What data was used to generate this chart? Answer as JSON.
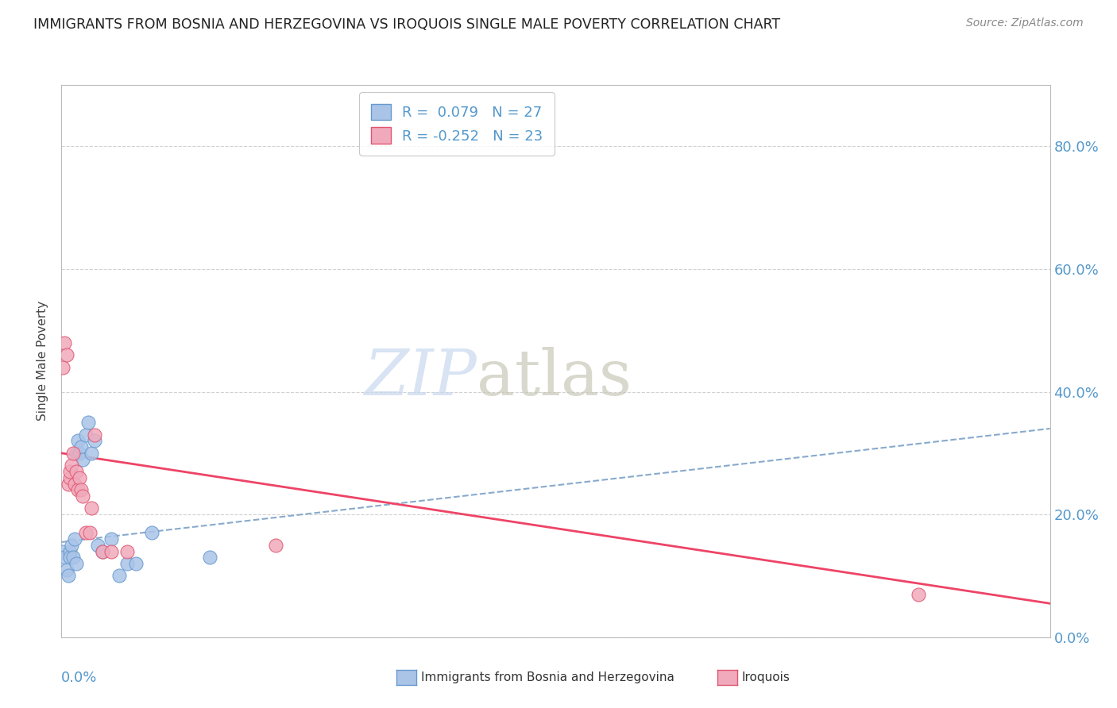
{
  "title": "IMMIGRANTS FROM BOSNIA AND HERZEGOVINA VS IROQUOIS SINGLE MALE POVERTY CORRELATION CHART",
  "source": "Source: ZipAtlas.com",
  "ylabel": "Single Male Poverty",
  "xmin": 0.0,
  "xmax": 0.6,
  "ymin": 0.0,
  "ymax": 0.9,
  "legend_r1": "R =  0.079   N = 27",
  "legend_r2": "R = -0.252   N = 23",
  "blue_color": "#aac4e8",
  "pink_color": "#f0aabb",
  "blue_edge_color": "#6699cc",
  "pink_edge_color": "#e05570",
  "blue_line_color": "#88aacc",
  "pink_line_color": "#ee4466",
  "blue_scatter": [
    [
      0.001,
      0.14
    ],
    [
      0.002,
      0.13
    ],
    [
      0.003,
      0.11
    ],
    [
      0.004,
      0.1
    ],
    [
      0.005,
      0.14
    ],
    [
      0.005,
      0.13
    ],
    [
      0.006,
      0.15
    ],
    [
      0.007,
      0.13
    ],
    [
      0.008,
      0.16
    ],
    [
      0.009,
      0.12
    ],
    [
      0.009,
      0.3
    ],
    [
      0.01,
      0.32
    ],
    [
      0.011,
      0.3
    ],
    [
      0.012,
      0.31
    ],
    [
      0.013,
      0.29
    ],
    [
      0.015,
      0.33
    ],
    [
      0.016,
      0.35
    ],
    [
      0.018,
      0.3
    ],
    [
      0.02,
      0.32
    ],
    [
      0.022,
      0.15
    ],
    [
      0.025,
      0.14
    ],
    [
      0.03,
      0.16
    ],
    [
      0.035,
      0.1
    ],
    [
      0.04,
      0.12
    ],
    [
      0.045,
      0.12
    ],
    [
      0.055,
      0.17
    ],
    [
      0.09,
      0.13
    ]
  ],
  "pink_scatter": [
    [
      0.001,
      0.44
    ],
    [
      0.002,
      0.48
    ],
    [
      0.003,
      0.46
    ],
    [
      0.004,
      0.25
    ],
    [
      0.005,
      0.26
    ],
    [
      0.005,
      0.27
    ],
    [
      0.006,
      0.28
    ],
    [
      0.007,
      0.3
    ],
    [
      0.008,
      0.25
    ],
    [
      0.009,
      0.27
    ],
    [
      0.01,
      0.24
    ],
    [
      0.011,
      0.26
    ],
    [
      0.012,
      0.24
    ],
    [
      0.013,
      0.23
    ],
    [
      0.015,
      0.17
    ],
    [
      0.017,
      0.17
    ],
    [
      0.018,
      0.21
    ],
    [
      0.02,
      0.33
    ],
    [
      0.025,
      0.14
    ],
    [
      0.03,
      0.14
    ],
    [
      0.04,
      0.14
    ],
    [
      0.13,
      0.15
    ],
    [
      0.52,
      0.07
    ]
  ],
  "blue_trendline": [
    [
      0.0,
      0.155
    ],
    [
      0.6,
      0.34
    ]
  ],
  "pink_trendline": [
    [
      0.0,
      0.3
    ],
    [
      0.6,
      0.055
    ]
  ],
  "ytick_values": [
    0.0,
    0.2,
    0.4,
    0.6,
    0.8
  ],
  "ytick_labels": [
    "0.0%",
    "20.0%",
    "40.0%",
    "60.0%",
    "80.0%"
  ],
  "xtick_positions": [
    0.0,
    0.1,
    0.2,
    0.3,
    0.4,
    0.5,
    0.6
  ],
  "grid_color": "#cccccc",
  "watermark_zip_color": "#c8d8ee",
  "watermark_atlas_color": "#c8c8b8"
}
